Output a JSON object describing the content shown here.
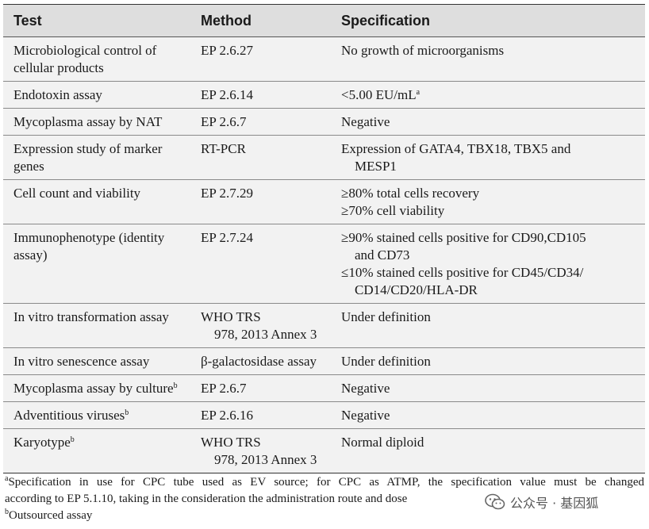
{
  "headers": {
    "test": "Test",
    "method": "Method",
    "spec": "Specification"
  },
  "rows": [
    {
      "test": [
        "Microbiological control of",
        "cellular products"
      ],
      "method": [
        "EP 2.6.27"
      ],
      "spec": [
        "No growth of microorganisms"
      ]
    },
    {
      "test": [
        "Endotoxin assay"
      ],
      "method": [
        "EP 2.6.14"
      ],
      "spec": [
        "<5.00 EU/mL"
      ],
      "spec_sup": "a"
    },
    {
      "test": [
        "Mycoplasma assay by NAT"
      ],
      "method": [
        "EP 2.6.7"
      ],
      "spec": [
        "Negative"
      ]
    },
    {
      "test": [
        "Expression study of marker",
        "genes"
      ],
      "method": [
        "RT-PCR"
      ],
      "spec": [
        "Expression of GATA4, TBX18, TBX5 and",
        "MESP1"
      ]
    },
    {
      "test": [
        "Cell count and viability"
      ],
      "method": [
        "EP 2.7.29"
      ],
      "spec": [
        "≥80% total cells recovery",
        "≥70% cell viability"
      ]
    },
    {
      "test": [
        "Immunophenotype (identity",
        "assay)"
      ],
      "method": [
        "EP 2.7.24"
      ],
      "spec": [
        "≥90% stained cells positive for CD90,CD105",
        "and CD73",
        "≤10% stained cells positive for CD45/CD34/",
        "CD14/CD20/HLA-DR"
      ]
    },
    {
      "test": [
        "In vitro transformation assay"
      ],
      "method": [
        "WHO TRS",
        "978, 2013 Annex 3"
      ],
      "spec": [
        "Under definition"
      ]
    },
    {
      "test": [
        "In vitro senescence assay"
      ],
      "method": [
        "β-galactosidase assay"
      ],
      "spec": [
        "Under definition"
      ]
    },
    {
      "test": [
        "Mycoplasma assay by culture"
      ],
      "test_sup": "b",
      "method": [
        "EP 2.6.7"
      ],
      "spec": [
        "Negative"
      ]
    },
    {
      "test": [
        "Adventitious viruses"
      ],
      "test_sup": "b",
      "method": [
        "EP 2.6.16"
      ],
      "spec": [
        "Negative"
      ]
    },
    {
      "test": [
        "Karyotype"
      ],
      "test_sup": "b",
      "method": [
        "WHO TRS",
        "978, 2013 Annex 3"
      ],
      "spec": [
        "Normal diploid"
      ]
    }
  ],
  "footnotes": {
    "a_mark": "a",
    "a_line1": "Specification in use for CPC tube used as EV source; for CPC as ATMP, the specification value must be changed",
    "a_line2": "according to EP 5.1.10, taking in the consideration the administration route and dose",
    "b_mark": "b",
    "b_text": "Outsourced assay"
  },
  "watermark": {
    "text": "公众号 · 基因狐",
    "icon": "wechat-icon"
  }
}
